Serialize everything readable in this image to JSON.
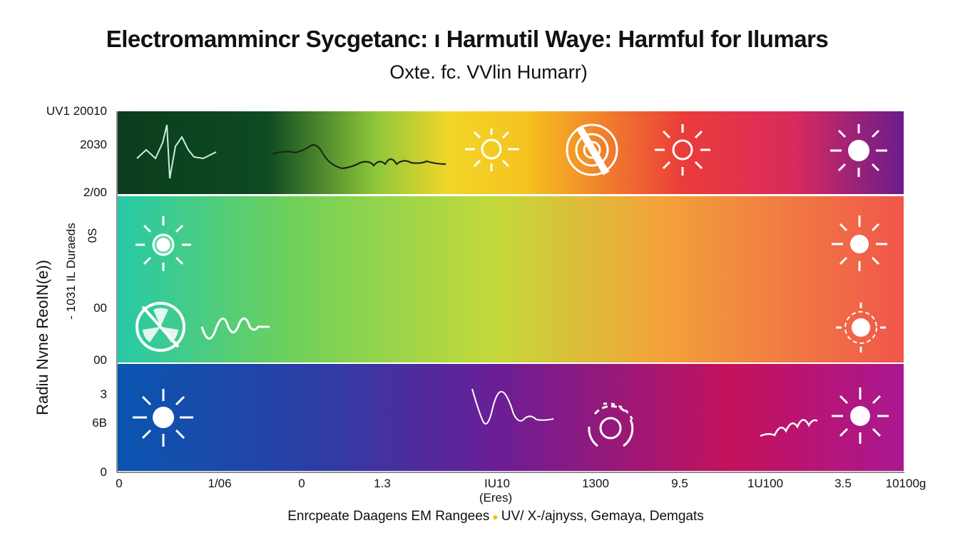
{
  "header": {
    "title": "Electromammincr Sycgetanc: ı Harmutil Waye: Harmful for Ilumars",
    "subtitle": "Oxte. fc. VVlin Humarr)"
  },
  "axes": {
    "y_ticks": [
      "UV1 20010",
      "2030",
      "2/00",
      "00",
      "00",
      "3",
      "6B",
      "0"
    ],
    "x_ticks": [
      "0",
      "1/06",
      "0",
      "1.3",
      "IU10",
      "1300",
      "9.5",
      "1U100",
      "3.5",
      "10100g"
    ],
    "y_label": "Radiu Nvne  ReoIN(e))",
    "y_label2": "- 1031 IL Duraeds",
    "y_label3": "0S",
    "x_label": "(Eres)"
  },
  "legend": {
    "text_left": "Enrcpeate Daagens EM Rangees",
    "text_right": "UV/ X-/ajnyss, Gemaya, Demgats"
  },
  "colors": {
    "top_band": [
      "#0b3d1e",
      "#0e4a22",
      "#f1d628",
      "#f6c21f",
      "#ea3c3a",
      "#d92a5d",
      "#6a1c8d"
    ],
    "middle_band": [
      "#27c9a8",
      "#6ed05a",
      "#c4d93a",
      "#f2a53a",
      "#f0564a"
    ],
    "bottom_band": [
      "#0a55b0",
      "#2b3ea5",
      "#6a1e97",
      "#c4125c",
      "#a91890"
    ],
    "legend_dot": "#f2c400"
  },
  "chart_data": {
    "type": "heatmap",
    "title": "Electromammincr Sycgetanc: ı Harmutil Waye: Harmful for Ilumars",
    "subtitle": "Oxte. fc. VVlin Humarr)",
    "xlabel": "(Eres)",
    "ylabel": "Radiu Nvne  ReoIN(e))",
    "x_tick_labels": [
      "0",
      "1/06",
      "0",
      "1.3",
      "IU10",
      "1300",
      "9.5",
      "1U100",
      "3.5",
      "10100g"
    ],
    "y_tick_labels": [
      "UV1 20010",
      "2030",
      "2/00",
      "00",
      "00",
      "3",
      "6B",
      "0"
    ],
    "bands": [
      {
        "row": "top",
        "icons": [
          "heartbeat-wave",
          "squiggle-wave",
          "sun",
          "radiation-shield",
          "sun",
          "sun"
        ]
      },
      {
        "row": "middle",
        "icons": [
          "sun",
          "radiation-symbol",
          "wave",
          "sun",
          "sun"
        ]
      },
      {
        "row": "bottom",
        "icons": [
          "sun",
          "pulse-wave",
          "radiation-rings",
          "rising-wave",
          "sun"
        ]
      }
    ],
    "grid": false,
    "legend_position": "bottom"
  }
}
